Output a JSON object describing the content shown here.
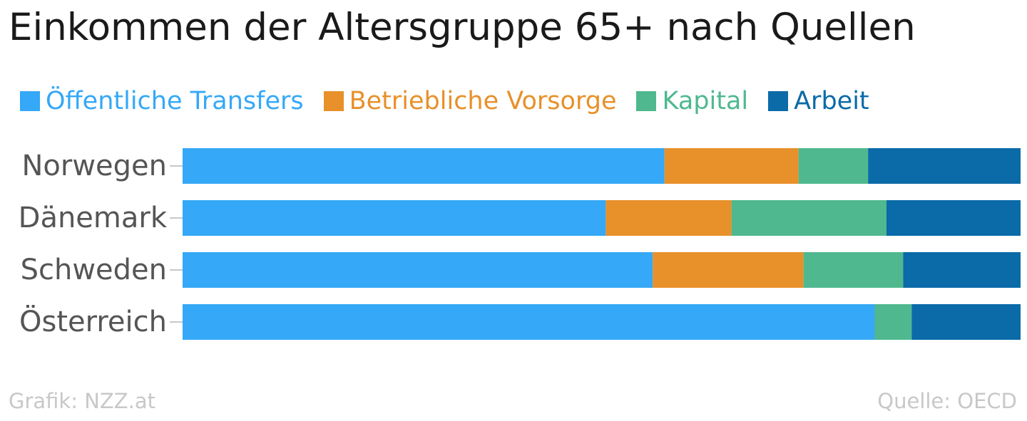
{
  "title": "Einkommen der Altersgruppe 65+ nach Quellen",
  "credit": "Grafik: NZZ.at",
  "source": "Quelle: OECD",
  "chart_data": {
    "type": "bar",
    "orientation": "horizontal",
    "stacked": true,
    "normalized": true,
    "title": "Einkommen der Altersgruppe 65+ nach Quellen",
    "categories": [
      "Norwegen",
      "Dänemark",
      "Schweden",
      "Österreich"
    ],
    "series": [
      {
        "name": "Öffentliche Transfers",
        "color": "#35a8f7",
        "values": [
          57.5,
          50.5,
          56.1,
          82.6
        ]
      },
      {
        "name": "Betriebliche Vorsorge",
        "color": "#e8902a",
        "values": [
          16.0,
          15.0,
          18.0,
          0.0
        ]
      },
      {
        "name": "Kapital",
        "color": "#4fb88f",
        "values": [
          8.3,
          18.5,
          11.9,
          4.4
        ]
      },
      {
        "name": "Arbeit",
        "color": "#0b6aa8",
        "values": [
          18.2,
          16.0,
          14.0,
          13.0
        ]
      }
    ],
    "xlim": [
      0,
      100
    ],
    "grid": false,
    "legend_position": "top"
  }
}
